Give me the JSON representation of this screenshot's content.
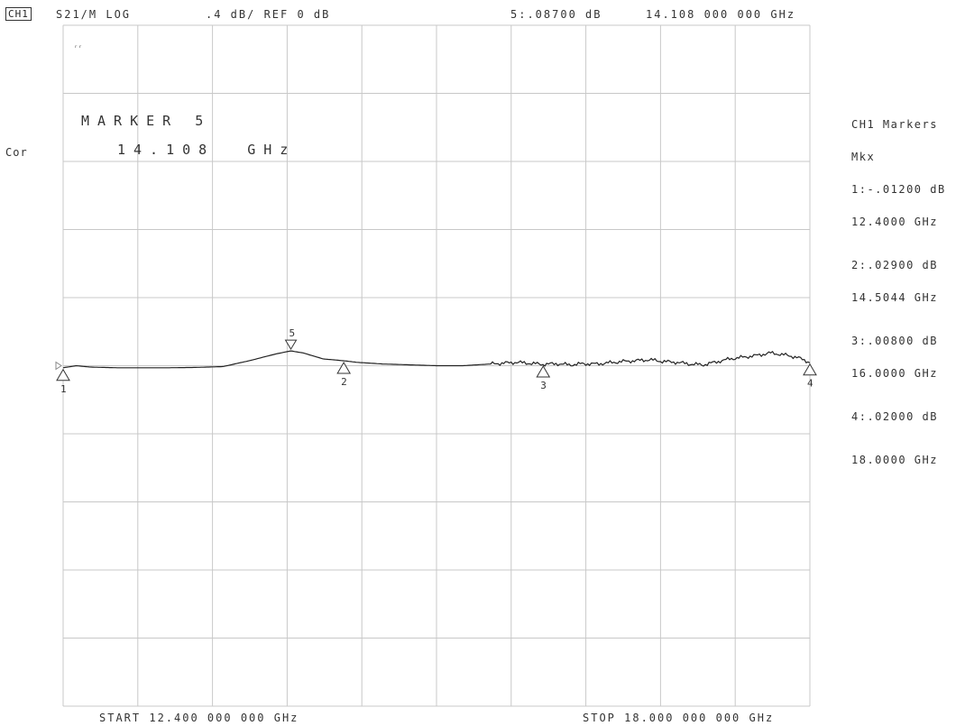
{
  "header": {
    "channel": "CH1",
    "format": "S21/M LOG",
    "scale": ".4 dB/ REF 0 dB",
    "active_marker_value": "5:.08700 dB",
    "active_marker_freq": "14.108 000 000 GHz"
  },
  "annotations": {
    "small_mark": "ᵣᵣ",
    "marker_title": "MARKER 5",
    "marker_freq": "14.108  GHz",
    "correction": "Cor"
  },
  "footer": {
    "start": "START 12.400 000 000 GHz",
    "stop": "STOP 18.000 000 000 GHz"
  },
  "markers_panel": {
    "title": "CH1 Markers",
    "subtitle": "Mkx",
    "items": [
      {
        "value": "1:-.01200 dB",
        "freq": "12.4000 GHz"
      },
      {
        "value": "2:.02900 dB",
        "freq": "14.5044 GHz"
      },
      {
        "value": "3:.00800 dB",
        "freq": "16.0000 GHz"
      },
      {
        "value": "4:.02000 dB",
        "freq": "18.0000 GHz"
      }
    ]
  },
  "colors": {
    "grid": "#c8c8c8",
    "trace": "#222222",
    "text": "#333333"
  },
  "chart_data": {
    "type": "line",
    "title": "",
    "xlabel": "",
    "ylabel": "",
    "xlim": [
      12.4,
      18.0
    ],
    "ylim": [
      -2.0,
      2.0
    ],
    "x_unit": "GHz",
    "y_unit": "dB",
    "grid": true,
    "x_divisions": 10,
    "y_divisions": 10,
    "reference_level": 0,
    "series": [
      {
        "x": [
          12.4,
          12.5,
          12.6,
          12.8,
          13.0,
          13.2,
          13.4,
          13.6,
          13.8,
          14.0,
          14.108,
          14.2,
          14.35,
          14.5044,
          14.6,
          14.8,
          15.0,
          15.2,
          15.4,
          15.6,
          15.8,
          16.0,
          16.1,
          16.2,
          16.3,
          16.4,
          16.6,
          16.8,
          16.9,
          17.0,
          17.1,
          17.2,
          17.4,
          17.6,
          17.7,
          17.8,
          17.9,
          18.0
        ],
        "y": [
          -0.012,
          0.0,
          -0.008,
          -0.012,
          -0.012,
          -0.012,
          -0.01,
          -0.005,
          0.03,
          0.07,
          0.087,
          0.075,
          0.04,
          0.029,
          0.02,
          0.01,
          0.005,
          0.0,
          0.0,
          0.01,
          0.02,
          0.008,
          0.012,
          0.005,
          0.012,
          0.01,
          0.025,
          0.035,
          0.025,
          0.02,
          0.01,
          0.005,
          0.04,
          0.06,
          0.075,
          0.065,
          0.05,
          0.02
        ]
      }
    ],
    "markers": [
      {
        "id": "1",
        "x": 12.4,
        "y": -0.012
      },
      {
        "id": "2",
        "x": 14.5044,
        "y": 0.029
      },
      {
        "id": "3",
        "x": 16.0,
        "y": 0.008
      },
      {
        "id": "4",
        "x": 18.0,
        "y": 0.02
      },
      {
        "id": "5",
        "x": 14.108,
        "y": 0.087
      }
    ]
  }
}
